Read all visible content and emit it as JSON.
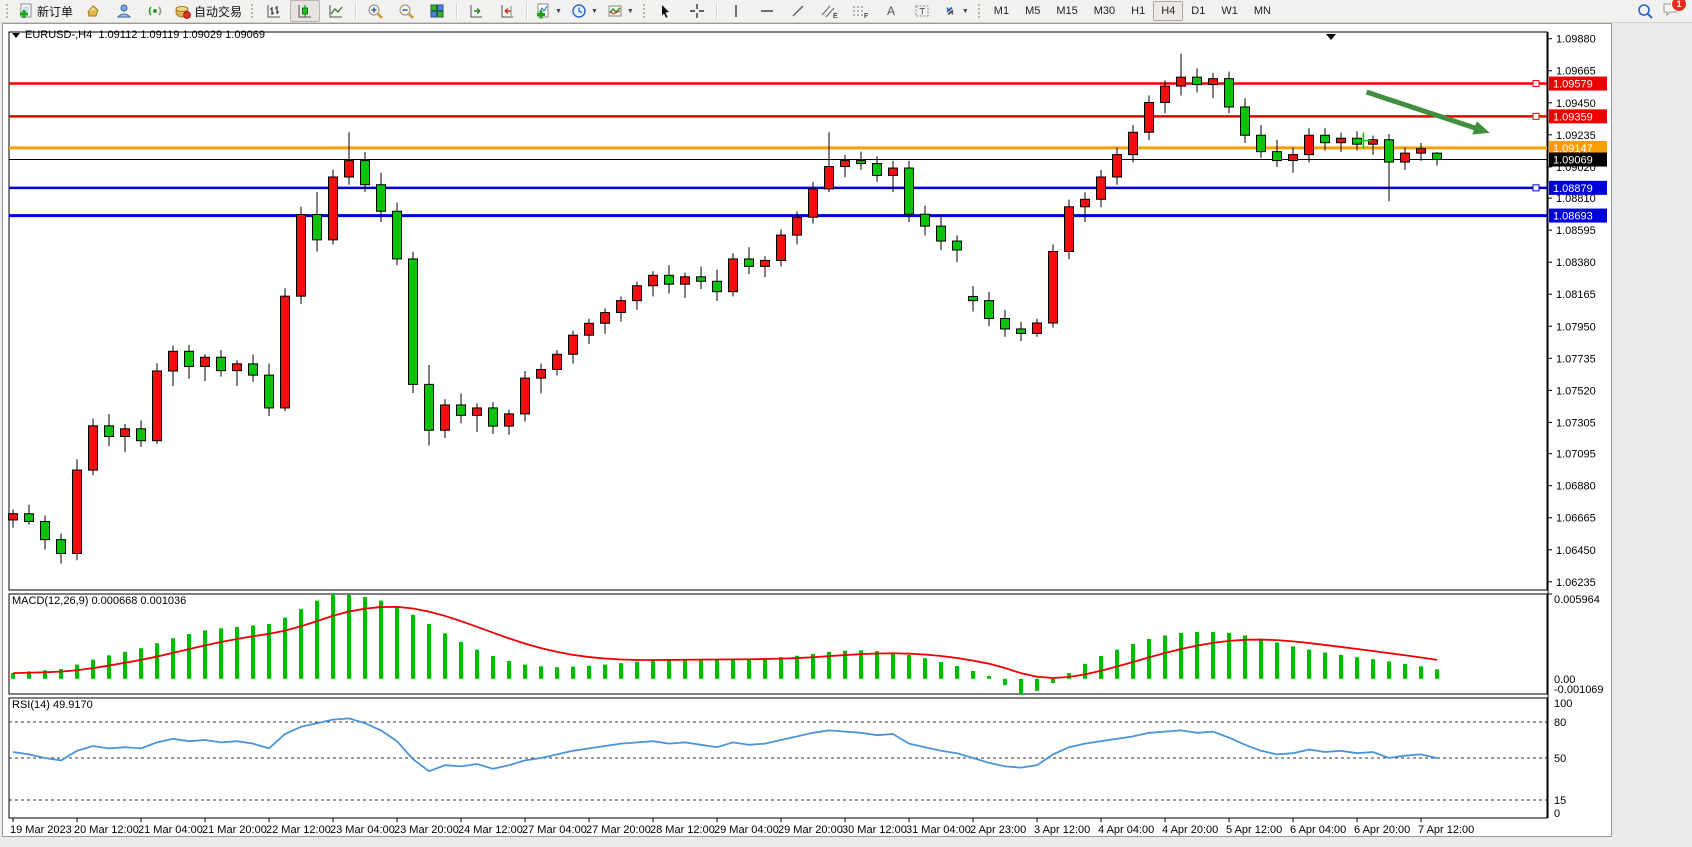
{
  "toolbar": {
    "new_order_label": "新订单",
    "auto_trading_label": "自动交易",
    "timeframes": [
      "M1",
      "M5",
      "M15",
      "M30",
      "H1",
      "H4",
      "D1",
      "W1",
      "MN"
    ],
    "active_timeframe": "H4",
    "notification_badge": "1"
  },
  "chart_data": {
    "type": "candlestick",
    "symbol": "EURUSD-",
    "timeframe": "H4",
    "header_title": "EURUSD-,H4",
    "header_ohlc": "1.09112 1.09119 1.09029 1.09069",
    "current_ohlc": {
      "open": 1.09112,
      "high": 1.09119,
      "low": 1.09029,
      "close": 1.09069
    },
    "ylim": [
      1.0618,
      1.09925
    ],
    "price_ticks": [
      "1.09880",
      "1.09665",
      "1.09450",
      "1.09235",
      "1.09020",
      "1.08810",
      "1.08595",
      "1.08380",
      "1.08165",
      "1.07950",
      "1.07735",
      "1.07520",
      "1.07305",
      "1.07095",
      "1.06880",
      "1.06665",
      "1.06450",
      "1.06235"
    ],
    "x_labels": [
      "19 Mar 2023",
      "20 Mar 12:00",
      "21 Mar 04:00",
      "21 Mar 20:00",
      "22 Mar 12:00",
      "23 Mar 04:00",
      "23 Mar 20:00",
      "24 Mar 12:00",
      "27 Mar 04:00",
      "27 Mar 20:00",
      "28 Mar 12:00",
      "29 Mar 04:00",
      "29 Mar 20:00",
      "30 Mar 12:00",
      "31 Mar 04:00",
      "2 Apr 23:00",
      "3 Apr 12:00",
      "4 Apr 04:00",
      "4 Apr 20:00",
      "5 Apr 12:00",
      "6 Apr 04:00",
      "6 Apr 20:00",
      "7 Apr 12:00"
    ],
    "x_label_every": 4,
    "colors": {
      "up": "#ee1111",
      "down": "#0cc20c",
      "outline": "#000000",
      "macd_bar": "#00bb00",
      "macd_signal": "#ee0000",
      "rsi_line": "#4a94d8"
    },
    "candles": [
      [
        1.0665,
        1.06721,
        1.06598,
        1.06692
      ],
      [
        1.06692,
        1.06752,
        1.06618,
        1.0664
      ],
      [
        1.0664,
        1.0668,
        1.06452,
        1.06518
      ],
      [
        1.06518,
        1.0656,
        1.06358,
        1.06425
      ],
      [
        1.06425,
        1.07058,
        1.0638,
        1.06985
      ],
      [
        1.06985,
        1.0733,
        1.0695,
        1.07282
      ],
      [
        1.07282,
        1.0736,
        1.07145,
        1.0721
      ],
      [
        1.0721,
        1.07295,
        1.07105,
        1.07262
      ],
      [
        1.07262,
        1.07318,
        1.0714,
        1.07182
      ],
      [
        1.07182,
        1.07702,
        1.0716,
        1.0765
      ],
      [
        1.0765,
        1.0782,
        1.07548,
        1.07782
      ],
      [
        1.07782,
        1.07825,
        1.07598,
        1.0768
      ],
      [
        1.0768,
        1.07762,
        1.07582,
        1.07742
      ],
      [
        1.07742,
        1.0779,
        1.07612,
        1.07652
      ],
      [
        1.07652,
        1.07722,
        1.0755,
        1.07698
      ],
      [
        1.07698,
        1.0776,
        1.07578,
        1.07622
      ],
      [
        1.07622,
        1.077,
        1.07348,
        1.07402
      ],
      [
        1.07402,
        1.08205,
        1.0738,
        1.08152
      ],
      [
        1.08152,
        1.08752,
        1.081,
        1.087
      ],
      [
        1.087,
        1.08852,
        1.08452,
        1.0853
      ],
      [
        1.0853,
        1.09002,
        1.085,
        1.08952
      ],
      [
        1.08952,
        1.09252,
        1.089,
        1.09062
      ],
      [
        1.09062,
        1.0912,
        1.08852,
        1.089
      ],
      [
        1.089,
        1.0898,
        1.0865,
        1.08722
      ],
      [
        1.08722,
        1.0878,
        1.0836,
        1.08402
      ],
      [
        1.08402,
        1.0845,
        1.07502,
        1.0756
      ],
      [
        1.0756,
        1.0769,
        1.0715,
        1.07252
      ],
      [
        1.07252,
        1.0746,
        1.072,
        1.07422
      ],
      [
        1.07422,
        1.075,
        1.073,
        1.07352
      ],
      [
        1.07352,
        1.07432,
        1.0724,
        1.07402
      ],
      [
        1.07402,
        1.0744,
        1.07228,
        1.0728
      ],
      [
        1.0728,
        1.0739,
        1.07222,
        1.07362
      ],
      [
        1.07362,
        1.0765,
        1.0731,
        1.07602
      ],
      [
        1.07602,
        1.077,
        1.075,
        1.0766
      ],
      [
        1.0766,
        1.0779,
        1.0762,
        1.07762
      ],
      [
        1.07762,
        1.0792,
        1.077,
        1.0789
      ],
      [
        1.0789,
        1.08,
        1.0783,
        1.0797
      ],
      [
        1.0797,
        1.0807,
        1.079,
        1.08042
      ],
      [
        1.08042,
        1.0815,
        1.0798,
        1.08122
      ],
      [
        1.08122,
        1.0825,
        1.0806,
        1.08222
      ],
      [
        1.08222,
        1.0832,
        1.0815,
        1.08292
      ],
      [
        1.08292,
        1.0836,
        1.0817,
        1.08232
      ],
      [
        1.08232,
        1.0831,
        1.0814,
        1.08282
      ],
      [
        1.08282,
        1.0835,
        1.082,
        1.08252
      ],
      [
        1.08252,
        1.0833,
        1.0812,
        1.08182
      ],
      [
        1.08182,
        1.0844,
        1.0815,
        1.08402
      ],
      [
        1.08402,
        1.0848,
        1.083,
        1.08352
      ],
      [
        1.08352,
        1.0842,
        1.0828,
        1.08392
      ],
      [
        1.08392,
        1.086,
        1.0835,
        1.08562
      ],
      [
        1.08562,
        1.0872,
        1.085,
        1.08682
      ],
      [
        1.08682,
        1.0892,
        1.0864,
        1.08872
      ],
      [
        1.08872,
        1.09252,
        1.0885,
        1.09022
      ],
      [
        1.09022,
        1.091,
        1.0895,
        1.09062
      ],
      [
        1.09062,
        1.09122,
        1.09,
        1.09042
      ],
      [
        1.09042,
        1.0909,
        1.0892,
        1.08962
      ],
      [
        1.08962,
        1.0906,
        1.0885,
        1.09012
      ],
      [
        1.09012,
        1.0906,
        1.0865,
        1.08702
      ],
      [
        1.08702,
        1.0876,
        1.0856,
        1.08622
      ],
      [
        1.08622,
        1.087,
        1.0846,
        1.08522
      ],
      [
        1.08522,
        1.0856,
        1.0838,
        1.08462
      ],
      [
        1.0815,
        1.0822,
        1.0805,
        1.08122
      ],
      [
        1.08122,
        1.0818,
        1.0795,
        1.08002
      ],
      [
        1.08002,
        1.0806,
        1.0788,
        1.07932
      ],
      [
        1.07932,
        1.0798,
        1.0785,
        1.07902
      ],
      [
        1.07902,
        1.08,
        1.0788,
        1.07972
      ],
      [
        1.07972,
        1.085,
        1.0794,
        1.08452
      ],
      [
        1.08452,
        1.088,
        1.084,
        1.08752
      ],
      [
        1.08752,
        1.0885,
        1.0865,
        1.08802
      ],
      [
        1.08802,
        1.09,
        1.0875,
        1.08952
      ],
      [
        1.08952,
        1.0915,
        1.089,
        1.09102
      ],
      [
        1.09102,
        1.093,
        1.0905,
        1.09252
      ],
      [
        1.09252,
        1.095,
        1.092,
        1.09452
      ],
      [
        1.09452,
        1.096,
        1.0938,
        1.09562
      ],
      [
        1.09562,
        1.0978,
        1.095,
        1.09622
      ],
      [
        1.09622,
        1.0968,
        1.0952,
        1.09572
      ],
      [
        1.09572,
        1.0965,
        1.0948,
        1.09612
      ],
      [
        1.09612,
        1.0966,
        1.0938,
        1.09422
      ],
      [
        1.09422,
        1.0948,
        1.0918,
        1.09232
      ],
      [
        1.09232,
        1.093,
        1.0908,
        1.09122
      ],
      [
        1.09122,
        1.092,
        1.0902,
        1.09062
      ],
      [
        1.09062,
        1.0915,
        1.0898,
        1.09102
      ],
      [
        1.09102,
        1.0928,
        1.0905,
        1.09232
      ],
      [
        1.09232,
        1.0928,
        1.0913,
        1.09182
      ],
      [
        1.09182,
        1.0925,
        1.0912,
        1.09212
      ],
      [
        1.09212,
        1.0926,
        1.0913,
        1.09172
      ],
      [
        1.09172,
        1.0923,
        1.091,
        1.09202
      ],
      [
        1.09202,
        1.0924,
        1.0879,
        1.09052
      ],
      [
        1.09052,
        1.0915,
        1.09,
        1.09112
      ],
      [
        1.09112,
        1.0918,
        1.0906,
        1.09142
      ],
      [
        1.09112,
        1.09119,
        1.09029,
        1.09069
      ]
    ],
    "levels": [
      {
        "price": 1.09579,
        "label": "1.09579",
        "color": "#ee0000",
        "width": 2.5,
        "marker": true
      },
      {
        "price": 1.09359,
        "label": "1.09359",
        "color": "#ee0000",
        "width": 2.5,
        "marker": true
      },
      {
        "price": 1.09147,
        "label": "1.09147",
        "color": "#ff9c00",
        "width": 3,
        "marker": false
      },
      {
        "price": 1.09069,
        "label": "1.09069",
        "color": "#000000",
        "width": 1,
        "marker": false,
        "current": true
      },
      {
        "price": 1.08879,
        "label": "1.08879",
        "color": "#0000dd",
        "width": 2.5,
        "marker": true
      },
      {
        "price": 1.08693,
        "label": "1.08693",
        "color": "#0000dd",
        "width": 3,
        "marker": false
      }
    ],
    "annotations": {
      "arrow": {
        "from_bar": 84.6,
        "from_price": 1.09522,
        "to_bar": 92.3,
        "to_price": 1.09248,
        "color": "#3f8f3f"
      },
      "cross": {
        "bar": 84.4,
        "price": 1.09196,
        "color": "#00cc00"
      }
    },
    "panes": [
      {
        "type": "bar",
        "name": "MACD",
        "header": "MACD(12,26,9) 0.000668 0.001036",
        "ylim": [
          -0.001069,
          0.005964
        ],
        "ticks": [
          "0.005964",
          "0.00",
          "-0.001069"
        ],
        "values": [
          0.0004,
          0.00052,
          0.0006,
          0.00068,
          0.001,
          0.00135,
          0.00165,
          0.0019,
          0.00215,
          0.0025,
          0.00285,
          0.00315,
          0.0034,
          0.00355,
          0.00365,
          0.00375,
          0.00385,
          0.0043,
          0.0049,
          0.0055,
          0.005964,
          0.0059,
          0.00575,
          0.0055,
          0.0051,
          0.0045,
          0.00385,
          0.0032,
          0.0026,
          0.00205,
          0.0016,
          0.00125,
          0.001,
          0.00088,
          0.00082,
          0.00085,
          0.00092,
          0.001,
          0.0011,
          0.0012,
          0.0013,
          0.00135,
          0.00138,
          0.0014,
          0.00138,
          0.0014,
          0.00142,
          0.00145,
          0.00152,
          0.00162,
          0.00175,
          0.0019,
          0.00198,
          0.002,
          0.00195,
          0.00185,
          0.00168,
          0.00145,
          0.00118,
          0.0009,
          0.00055,
          0.0002,
          -0.00045,
          -0.001069,
          -0.00085,
          -0.0003,
          0.0004,
          0.00105,
          0.0016,
          0.00205,
          0.00245,
          0.0028,
          0.00305,
          0.00322,
          0.0033,
          0.0033,
          0.00322,
          0.00305,
          0.00282,
          0.00255,
          0.00228,
          0.00205,
          0.00185,
          0.00168,
          0.00152,
          0.00138,
          0.00122,
          0.00105,
          0.00088,
          0.000668
        ]
      },
      {
        "type": "line",
        "name": "RSI",
        "header": "RSI(14) 49.9170",
        "ylim": [
          0,
          100
        ],
        "ticks": [
          "100",
          "80",
          "50",
          "15",
          "0"
        ],
        "guides": [
          80,
          50,
          15
        ],
        "values": [
          55,
          53,
          50,
          48,
          56,
          60,
          58,
          59,
          58,
          63,
          66,
          64,
          65,
          63,
          64,
          62,
          58,
          70,
          76,
          79,
          82,
          83,
          79,
          73,
          64,
          49,
          39,
          44,
          43,
          45,
          41,
          44,
          48,
          50,
          53,
          56,
          58,
          60,
          62,
          63,
          64,
          62,
          63,
          61,
          59,
          63,
          61,
          62,
          65,
          68,
          71,
          73,
          72,
          71,
          69,
          70,
          62,
          59,
          56,
          54,
          50,
          46,
          43,
          42,
          44,
          53,
          59,
          62,
          64,
          66,
          68,
          71,
          72,
          73,
          71,
          72,
          67,
          61,
          56,
          53,
          54,
          57,
          55,
          56,
          54,
          55,
          50,
          52,
          53,
          49.917
        ]
      }
    ]
  }
}
